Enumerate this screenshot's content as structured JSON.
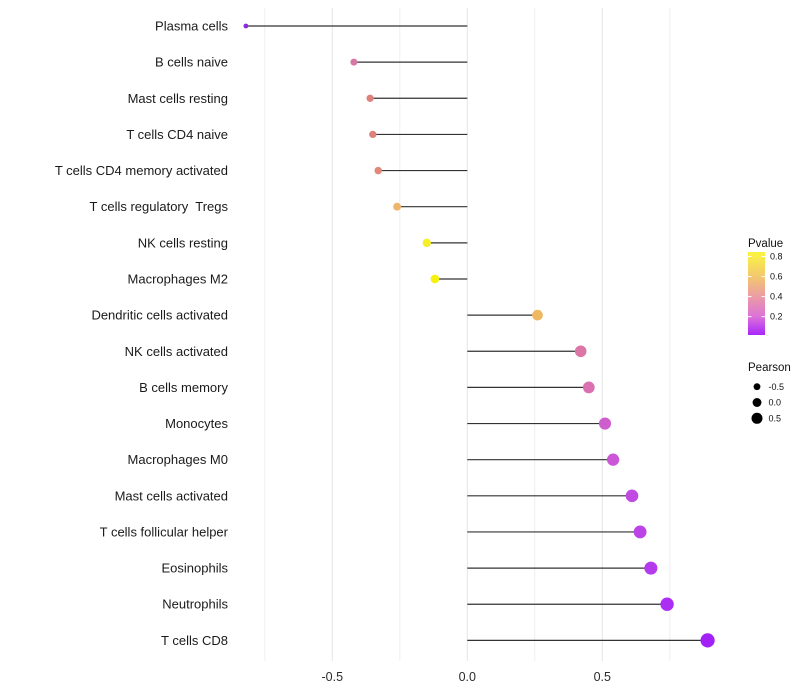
{
  "chart_data": {
    "type": "lollipop",
    "orientation": "horizontal",
    "title": "",
    "xlabel": "",
    "ylabel": "",
    "grid": "vertical-only",
    "background": "#ffffff",
    "stem_color": "#333333",
    "major_grid_color": "#e4e4e4",
    "minor_grid_color": "#f0f0f0",
    "rows": [
      {
        "label": "Plasma cells",
        "pearson": -0.82,
        "color": "#8B2BE0"
      },
      {
        "label": "B cells naive",
        "pearson": -0.42,
        "color": "#D678A4"
      },
      {
        "label": "Mast cells resting",
        "pearson": -0.36,
        "color": "#DD827B"
      },
      {
        "label": "T cells CD4 naive",
        "pearson": -0.35,
        "color": "#DD827B"
      },
      {
        "label": "T cells CD4 memory activated",
        "pearson": -0.33,
        "color": "#E08977"
      },
      {
        "label": "T cells regulatory  Tregs",
        "pearson": -0.26,
        "color": "#EEB66C"
      },
      {
        "label": "NK cells resting",
        "pearson": -0.15,
        "color": "#F5EE2A"
      },
      {
        "label": "Macrophages M2",
        "pearson": -0.12,
        "color": "#F7F00D"
      },
      {
        "label": "Dendritic cells activated",
        "pearson": 0.26,
        "color": "#EFB963"
      },
      {
        "label": "NK cells activated",
        "pearson": 0.42,
        "color": "#DB76A6"
      },
      {
        "label": "B cells memory",
        "pearson": 0.45,
        "color": "#DA70B2"
      },
      {
        "label": "Monocytes",
        "pearson": 0.51,
        "color": "#CE5ECE"
      },
      {
        "label": "Macrophages M0",
        "pearson": 0.54,
        "color": "#CB56D8"
      },
      {
        "label": "Mast cells activated",
        "pearson": 0.61,
        "color": "#BF4BE2"
      },
      {
        "label": "T cells follicular helper",
        "pearson": 0.64,
        "color": "#BC44E7"
      },
      {
        "label": "Eosinophils",
        "pearson": 0.68,
        "color": "#B43AEE"
      },
      {
        "label": "Neutrophils",
        "pearson": 0.74,
        "color": "#AC2EF3"
      },
      {
        "label": "T cells CD8",
        "pearson": 0.89,
        "color": "#A321F8"
      }
    ],
    "x_axis": {
      "range": [
        -0.91,
        0.98
      ],
      "major_ticks": [
        {
          "value": -0.5,
          "label": "-0.5"
        },
        {
          "value": 0.0,
          "label": "0.0"
        },
        {
          "value": 0.5,
          "label": "0.5"
        }
      ],
      "minor_ticks": [
        -0.75,
        -0.25,
        0.25,
        0.75
      ]
    },
    "legend_position": "right",
    "legends": {
      "pvalue": {
        "title": "Pvalue",
        "tick_labels": [
          "0.8",
          "0.6",
          "0.4",
          "0.2"
        ],
        "tick_values": [
          0.8,
          0.6,
          0.4,
          0.2
        ],
        "bar_value_top": 0.845,
        "bar_value_bottom": 0.017,
        "gradient_top_to_bottom": [
          {
            "offset": 0,
            "color": "#FBF33D"
          },
          {
            "offset": 0.05,
            "color": "#F9EE49"
          },
          {
            "offset": 0.3,
            "color": "#F2C76F"
          },
          {
            "offset": 0.54,
            "color": "#EB9BA6"
          },
          {
            "offset": 0.78,
            "color": "#DC72D8"
          },
          {
            "offset": 1,
            "color": "#A826FB"
          }
        ]
      },
      "pearson": {
        "title": "Pearson",
        "dot_color": "#000000",
        "items": [
          {
            "label": "-0.5",
            "value": -0.5
          },
          {
            "label": "0.0",
            "value": 0.0
          },
          {
            "label": "0.5",
            "value": 0.5
          }
        ]
      }
    }
  }
}
